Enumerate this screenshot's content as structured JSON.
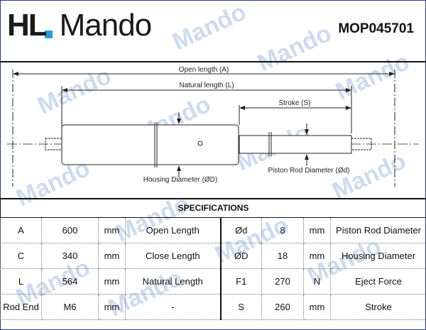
{
  "header": {
    "logo_text": "HL Mando",
    "part_number": "MOP045701"
  },
  "watermark": "Mando",
  "drawing": {
    "open_length": "Open length (A)",
    "natural_length": "Natural length (L)",
    "stroke": "Stroke (S)",
    "housing_diameter": "Housing Diameter (ØD)",
    "piston_rod_diameter": "Piston Rod Diameter (Ød)"
  },
  "specs": {
    "title": "SPECIFICATIONS",
    "rows": [
      [
        "A",
        "600",
        "mm",
        "Open Length",
        "Ød",
        "8",
        "mm",
        "Piston Rod Diameter"
      ],
      [
        "C",
        "340",
        "mm",
        "Close Length",
        "ØD",
        "18",
        "mm",
        "Housing Diameter"
      ],
      [
        "L",
        "564",
        "mm",
        "Natural Length",
        "F1",
        "270",
        "N",
        "Eject Force"
      ],
      [
        "Rod End",
        "M6",
        "mm",
        "-",
        "S",
        "260",
        "mm",
        "Stroke"
      ]
    ]
  },
  "colors": {
    "brand_blue": "#1fa0e0",
    "watermark": "#78a0d7"
  }
}
